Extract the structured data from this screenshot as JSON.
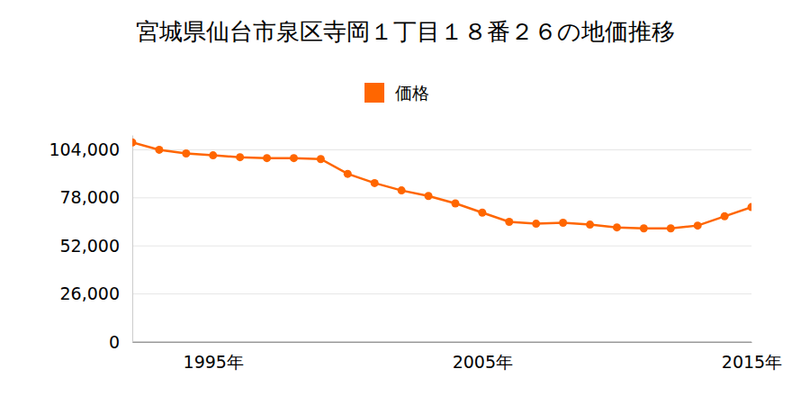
{
  "chart_data": {
    "type": "line",
    "title": "宮城県仙台市泉区寺岡１丁目１８番２６の地価推移",
    "x": [
      1992,
      1993,
      1994,
      1995,
      1996,
      1997,
      1998,
      1999,
      2000,
      2001,
      2002,
      2003,
      2004,
      2005,
      2006,
      2007,
      2008,
      2009,
      2010,
      2011,
      2012,
      2013,
      2014,
      2015
    ],
    "series": [
      {
        "name": "価格",
        "color": "#ff6600",
        "marker": "circle",
        "line_style": "solid",
        "values": [
          108000,
          104000,
          102000,
          101000,
          100000,
          99500,
          99500,
          99000,
          91000,
          86000,
          82000,
          79000,
          75000,
          70000,
          65000,
          64000,
          64500,
          63500,
          62000,
          61500,
          61500,
          63000,
          68000,
          73000
        ]
      }
    ],
    "xlim": [
      1992,
      2015
    ],
    "xticks": [
      {
        "value": 1995,
        "label": "1995年"
      },
      {
        "value": 2005,
        "label": "2005年"
      },
      {
        "value": 2015,
        "label": "2015年"
      }
    ],
    "ylim": [
      0,
      112000
    ],
    "yticks": [
      0,
      {
        "value": 26000,
        "label": "26,000"
      },
      {
        "value": 52000,
        "label": "52,000"
      },
      {
        "value": 78000,
        "label": "78,000"
      },
      {
        "value": 104000,
        "label": "104,000"
      }
    ],
    "grid": true,
    "legend": "top"
  }
}
